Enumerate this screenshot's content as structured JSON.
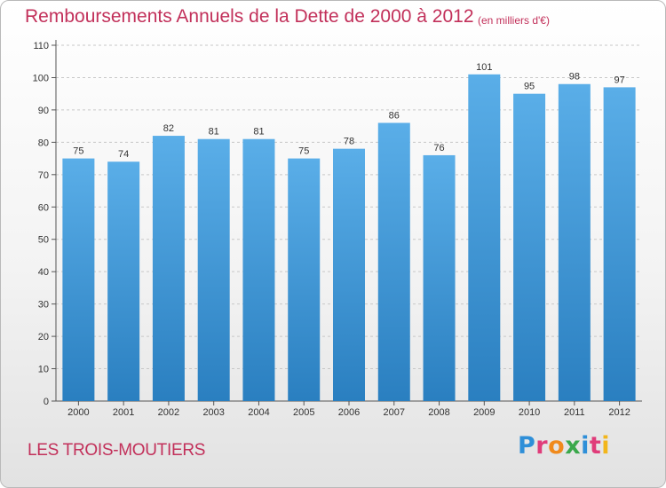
{
  "title": "Remboursements Annuels de la Dette de 2000 à 2012",
  "unit_note": "(en milliers d'€)",
  "commune_name": "LES TROIS-MOUTIERS",
  "logo": {
    "letters": [
      "P",
      "r",
      "o",
      "x",
      "i",
      "t",
      "i"
    ],
    "colors": [
      "#2f8fd8",
      "#e03c7a",
      "#f08a1c",
      "#3aa84b",
      "#2f8fd8",
      "#e03c7a",
      "#f2b61c"
    ]
  },
  "chart_data": {
    "type": "bar",
    "title": "Remboursements Annuels de la Dette de 2000 à 2012",
    "xlabel": "",
    "ylabel": "",
    "categories": [
      "2000",
      "2001",
      "2002",
      "2003",
      "2004",
      "2005",
      "2006",
      "2007",
      "2008",
      "2009",
      "2010",
      "2011",
      "2012"
    ],
    "values": [
      75,
      74,
      82,
      81,
      81,
      75,
      78,
      86,
      76,
      101,
      95,
      98,
      97
    ],
    "ylim": [
      0,
      110
    ],
    "yticks": [
      0,
      10,
      20,
      30,
      40,
      50,
      60,
      70,
      80,
      90,
      100,
      110
    ],
    "grid": true,
    "legend": "none",
    "bar_color_top": "#5aaee8",
    "bar_color_bottom": "#2a7fc0",
    "grid_color": "#c8c8c8"
  }
}
